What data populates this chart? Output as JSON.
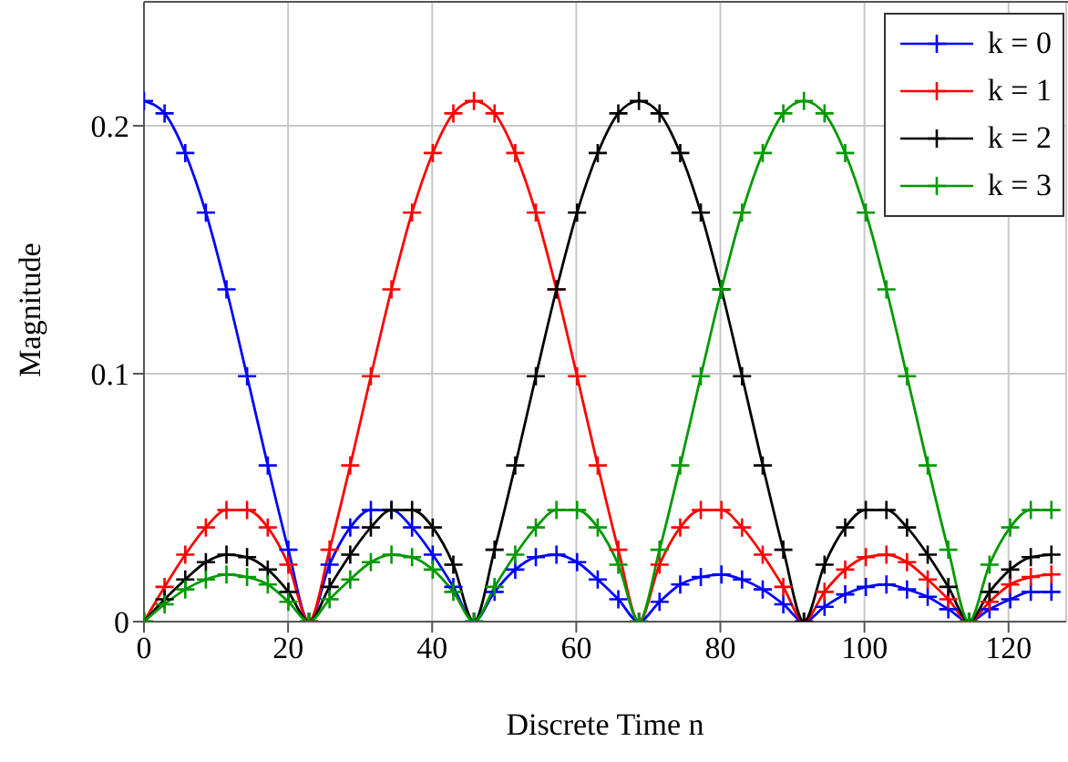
{
  "chart_data": {
    "type": "line",
    "xlabel": "Discrete Time n",
    "ylabel": "Magnitude",
    "x": [
      0,
      2.86,
      5.73,
      8.59,
      11.45,
      14.31,
      17.18,
      20.04,
      22.9,
      25.76,
      28.63,
      31.49,
      34.35,
      37.21,
      40.08,
      42.94,
      45.8,
      48.66,
      51.53,
      54.39,
      57.25,
      60.11,
      62.98,
      65.84,
      68.7,
      71.56,
      74.43,
      77.29,
      80.15,
      83.01,
      85.88,
      88.74,
      91.6,
      94.46,
      97.33,
      100.19,
      103.05,
      105.91,
      108.78,
      111.64,
      114.5,
      117.36,
      120.23,
      123.09,
      125.95
    ],
    "series": [
      {
        "name": "k = 0",
        "color": "#0000ff",
        "values": [
          0.21,
          0.205,
          0.189,
          0.165,
          0.134,
          0.099,
          0.063,
          0.029,
          0,
          0.023,
          0.038,
          0.045,
          0.045,
          0.038,
          0.027,
          0.014,
          0,
          0.012,
          0.021,
          0.026,
          0.027,
          0.024,
          0.017,
          0.009,
          0,
          0.008,
          0.015,
          0.018,
          0.019,
          0.017,
          0.013,
          0.007,
          0,
          0.006,
          0.011,
          0.014,
          0.015,
          0.013,
          0.01,
          0.005,
          0,
          0.005,
          0.009,
          0.012,
          0.012
        ]
      },
      {
        "name": "k = 1",
        "color": "#ff0000",
        "values": [
          0,
          0.014,
          0.027,
          0.038,
          0.045,
          0.045,
          0.038,
          0.023,
          0,
          0.029,
          0.063,
          0.099,
          0.134,
          0.165,
          0.189,
          0.205,
          0.21,
          0.205,
          0.189,
          0.165,
          0.134,
          0.099,
          0.063,
          0.029,
          0,
          0.023,
          0.038,
          0.045,
          0.045,
          0.038,
          0.027,
          0.014,
          0,
          0.012,
          0.021,
          0.026,
          0.027,
          0.024,
          0.017,
          0.009,
          0,
          0.008,
          0.015,
          0.018,
          0.019
        ]
      },
      {
        "name": "k = 2",
        "color": "#000000",
        "values": [
          0,
          0.009,
          0.017,
          0.024,
          0.027,
          0.026,
          0.021,
          0.012,
          0,
          0.014,
          0.027,
          0.038,
          0.045,
          0.045,
          0.038,
          0.023,
          0,
          0.029,
          0.063,
          0.099,
          0.134,
          0.165,
          0.189,
          0.205,
          0.21,
          0.205,
          0.189,
          0.165,
          0.134,
          0.099,
          0.063,
          0.029,
          0,
          0.023,
          0.038,
          0.045,
          0.045,
          0.038,
          0.027,
          0.014,
          0,
          0.012,
          0.021,
          0.026,
          0.027
        ]
      },
      {
        "name": "k = 3",
        "color": "#009900",
        "values": [
          0,
          0.007,
          0.013,
          0.017,
          0.019,
          0.018,
          0.015,
          0.008,
          0,
          0.009,
          0.017,
          0.024,
          0.027,
          0.026,
          0.021,
          0.012,
          0,
          0.014,
          0.027,
          0.038,
          0.045,
          0.045,
          0.038,
          0.023,
          0,
          0.029,
          0.063,
          0.099,
          0.134,
          0.165,
          0.189,
          0.205,
          0.21,
          0.205,
          0.189,
          0.165,
          0.134,
          0.099,
          0.063,
          0.029,
          0,
          0.023,
          0.038,
          0.045,
          0.045
        ]
      }
    ],
    "xlim": [
      0,
      128
    ],
    "xticks": [
      0,
      20,
      40,
      60,
      80,
      100,
      120
    ],
    "ylim": [
      0,
      0.25
    ],
    "yticks": [
      0,
      0.1,
      0.2
    ],
    "grid": true,
    "legend": "top right",
    "marker": "cross",
    "line_style": "solid"
  }
}
